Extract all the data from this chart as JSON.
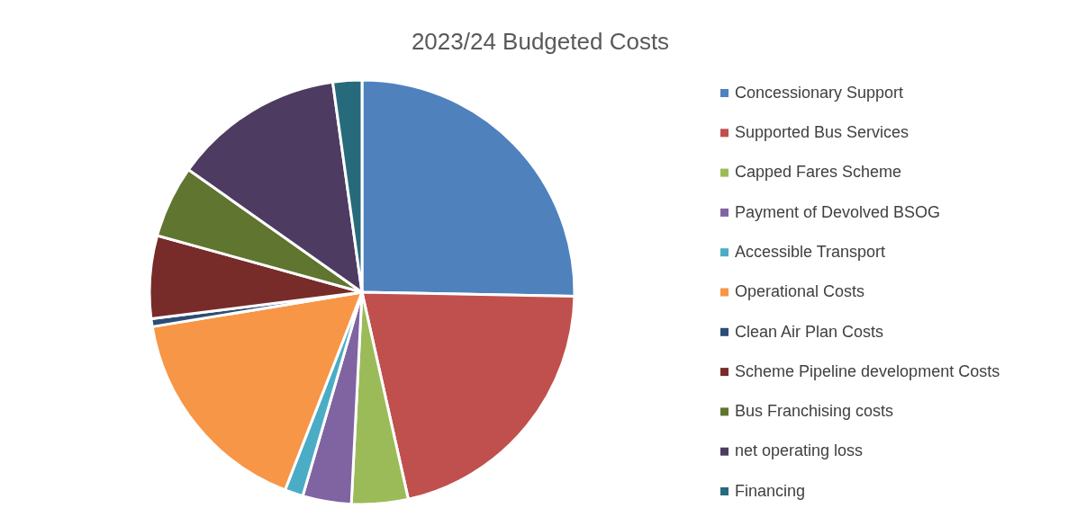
{
  "chart_data": {
    "type": "pie",
    "title": "2023/24 Budgeted Costs",
    "categories": [
      "Concessionary Support",
      "Supported Bus Services",
      "Capped Fares Scheme",
      "Payment of Devolved BSOG",
      "Accessible Transport",
      "Operational Costs",
      "Clean Air Plan Costs",
      "Scheme Pipeline development Costs",
      "Bus Franchising costs",
      "net operating loss",
      "Financing"
    ],
    "values": [
      25.3,
      21.2,
      4.3,
      3.7,
      1.4,
      16.5,
      0.6,
      6.3,
      5.5,
      13.0,
      2.2
    ],
    "colors": [
      "#4f81bd",
      "#c0504d",
      "#9bbb59",
      "#8064a2",
      "#4bacc6",
      "#f79646",
      "#2c4d75",
      "#772c2a",
      "#5f7530",
      "#4d3b62",
      "#276a7c"
    ],
    "legend": "right"
  }
}
